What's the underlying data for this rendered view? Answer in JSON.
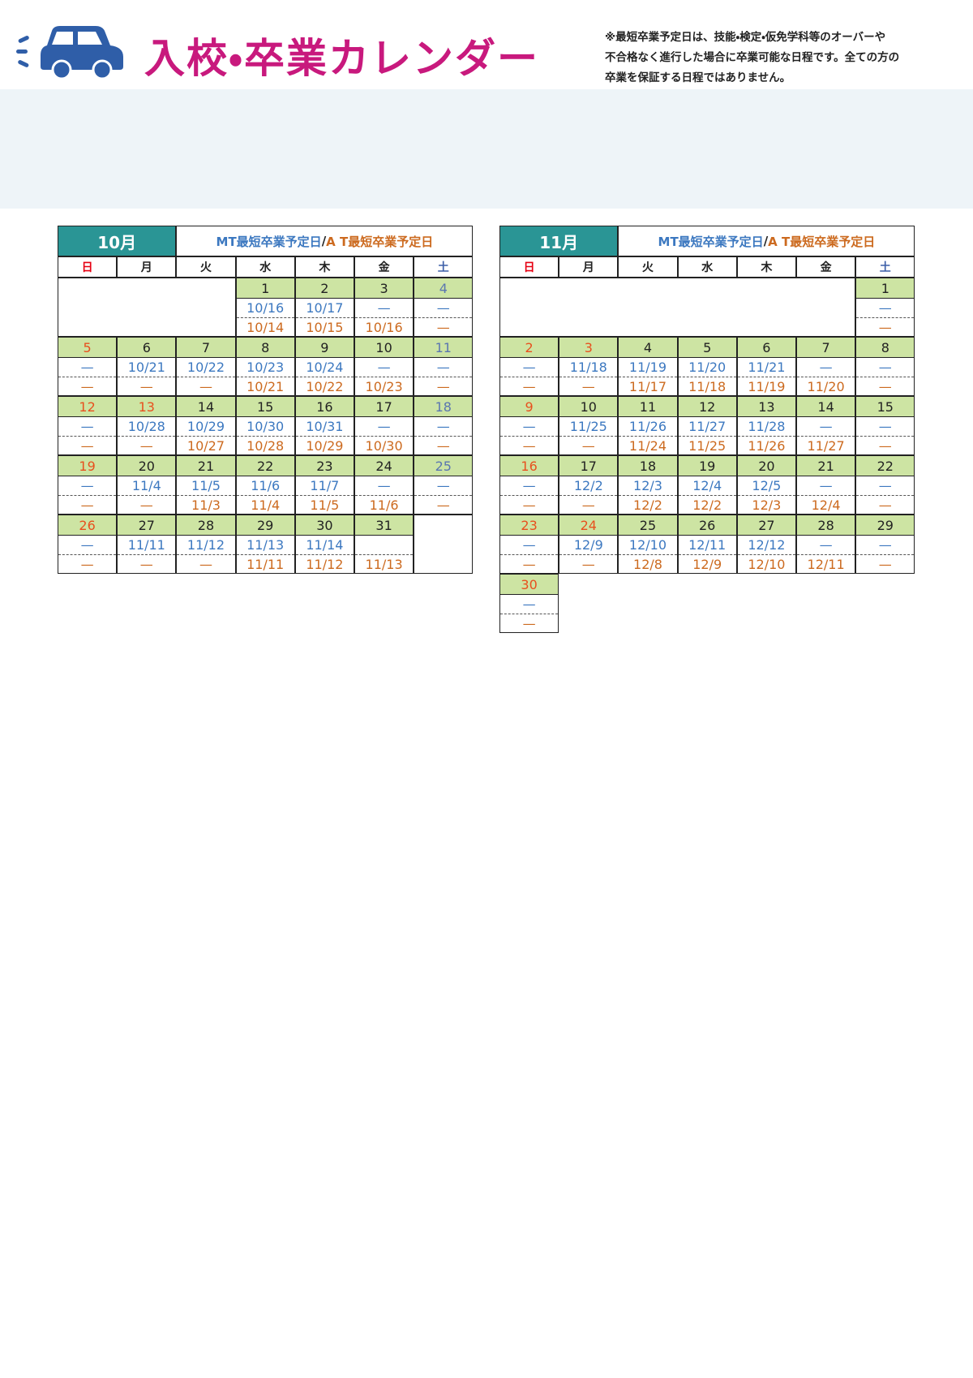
{
  "header": {
    "title": "入校・卒業カレンダー",
    "note": [
      "※最短卒業予定日は、技能・検定・仮免学科等のオーバーや",
      "不合格なく進行した場合に卒業可能な日程です。全ての方の",
      "卒業を保証する日程ではありません。"
    ]
  },
  "calendars": [
    {
      "month": "10月",
      "legend_mt": "MT最短卒業予定日",
      "legend_slash": "/",
      "legend_at": "A T最短卒業予定日",
      "weekdays": [
        "日",
        "月",
        "火",
        "水",
        "木",
        "金",
        "土"
      ],
      "weeks": [
        [
          null,
          null,
          null,
          {
            "day": "1",
            "mt": "10/16",
            "at": "10/14"
          },
          {
            "day": "2",
            "mt": "10/17",
            "at": "10/15"
          },
          {
            "day": "3",
            "mt": "—",
            "at": "10/16"
          },
          {
            "day": "4",
            "mt": "—",
            "at": "—",
            "color": "#5a76b0"
          }
        ],
        [
          {
            "day": "5",
            "mt": "—",
            "at": "—",
            "color": "#e8501e"
          },
          {
            "day": "6",
            "mt": "10/21",
            "at": "—"
          },
          {
            "day": "7",
            "mt": "10/22",
            "at": "—"
          },
          {
            "day": "8",
            "mt": "10/23",
            "at": "10/21"
          },
          {
            "day": "9",
            "mt": "10/24",
            "at": "10/22"
          },
          {
            "day": "10",
            "mt": "—",
            "at": "10/23"
          },
          {
            "day": "11",
            "mt": "—",
            "at": "—",
            "color": "#5a76b0"
          }
        ],
        [
          {
            "day": "12",
            "mt": "—",
            "at": "—",
            "color": "#e8501e"
          },
          {
            "day": "13",
            "mt": "10/28",
            "at": "—",
            "color": "#e8501e"
          },
          {
            "day": "14",
            "mt": "10/29",
            "at": "10/27"
          },
          {
            "day": "15",
            "mt": "10/30",
            "at": "10/28"
          },
          {
            "day": "16",
            "mt": "10/31",
            "at": "10/29"
          },
          {
            "day": "17",
            "mt": "—",
            "at": "10/30"
          },
          {
            "day": "18",
            "mt": "—",
            "at": "—",
            "color": "#5a76b0"
          }
        ],
        [
          {
            "day": "19",
            "mt": "—",
            "at": "—",
            "color": "#e8501e"
          },
          {
            "day": "20",
            "mt": "11/4",
            "at": "—"
          },
          {
            "day": "21",
            "mt": "11/5",
            "at": "11/3"
          },
          {
            "day": "22",
            "mt": "11/6",
            "at": "11/4"
          },
          {
            "day": "23",
            "mt": "11/7",
            "at": "11/5"
          },
          {
            "day": "24",
            "mt": "—",
            "at": "11/6"
          },
          {
            "day": "25",
            "mt": "—",
            "at": "—",
            "color": "#5a76b0"
          }
        ],
        [
          {
            "day": "26",
            "mt": "—",
            "at": "—",
            "color": "#e8501e"
          },
          {
            "day": "27",
            "mt": "11/11",
            "at": "—"
          },
          {
            "day": "28",
            "mt": "11/12",
            "at": "—"
          },
          {
            "day": "29",
            "mt": "11/13",
            "at": "11/11"
          },
          {
            "day": "30",
            "mt": "11/14",
            "at": "11/12"
          },
          {
            "day": "31",
            "at": "11/13"
          },
          null
        ]
      ]
    },
    {
      "month": "11月",
      "legend_mt": "MT最短卒業予定日",
      "legend_slash": "/",
      "legend_at": "A T最短卒業予定日",
      "weekdays": [
        "日",
        "月",
        "火",
        "水",
        "木",
        "金",
        "土"
      ],
      "weeks": [
        [
          null,
          null,
          null,
          null,
          null,
          null,
          {
            "day": "1",
            "mt": "—",
            "at": "—"
          }
        ],
        [
          {
            "day": "2",
            "mt": "—",
            "at": "—",
            "color": "#e8501e"
          },
          {
            "day": "3",
            "mt": "11/18",
            "at": "—",
            "color": "#e8501e"
          },
          {
            "day": "4",
            "mt": "11/19",
            "at": "11/17"
          },
          {
            "day": "5",
            "mt": "11/20",
            "at": "11/18"
          },
          {
            "day": "6",
            "mt": "11/21",
            "at": "11/19"
          },
          {
            "day": "7",
            "mt": "—",
            "at": "11/20"
          },
          {
            "day": "8",
            "mt": "—",
            "at": "—"
          }
        ],
        [
          {
            "day": "9",
            "mt": "—",
            "at": "—",
            "color": "#e8501e"
          },
          {
            "day": "10",
            "mt": "11/25",
            "at": "—"
          },
          {
            "day": "11",
            "mt": "11/26",
            "at": "11/24"
          },
          {
            "day": "12",
            "mt": "11/27",
            "at": "11/25"
          },
          {
            "day": "13",
            "mt": "11/28",
            "at": "11/26"
          },
          {
            "day": "14",
            "mt": "—",
            "at": "11/27"
          },
          {
            "day": "15",
            "mt": "—",
            "at": "—"
          }
        ],
        [
          {
            "day": "16",
            "mt": "—",
            "at": "—",
            "color": "#e8501e"
          },
          {
            "day": "17",
            "mt": "12/2",
            "at": "—"
          },
          {
            "day": "18",
            "mt": "12/3",
            "at": "12/2"
          },
          {
            "day": "19",
            "mt": "12/4",
            "at": "12/2"
          },
          {
            "day": "20",
            "mt": "12/5",
            "at": "12/3"
          },
          {
            "day": "21",
            "mt": "—",
            "at": "12/4"
          },
          {
            "day": "22",
            "mt": "—",
            "at": "—"
          }
        ],
        [
          {
            "day": "23",
            "mt": "—",
            "at": "—",
            "color": "#e8501e"
          },
          {
            "day": "24",
            "mt": "12/9",
            "at": "—",
            "color": "#e8501e"
          },
          {
            "day": "25",
            "mt": "12/10",
            "at": "12/8"
          },
          {
            "day": "26",
            "mt": "12/11",
            "at": "12/9"
          },
          {
            "day": "27",
            "mt": "12/12",
            "at": "12/10"
          },
          {
            "day": "28",
            "mt": "—",
            "at": "12/11"
          },
          {
            "day": "29",
            "mt": "—",
            "at": "—"
          }
        ],
        [
          {
            "day": "30",
            "mt": "—",
            "at": "—",
            "color": "#e8501e"
          },
          null,
          null,
          null,
          null,
          null,
          null
        ]
      ]
    }
  ]
}
